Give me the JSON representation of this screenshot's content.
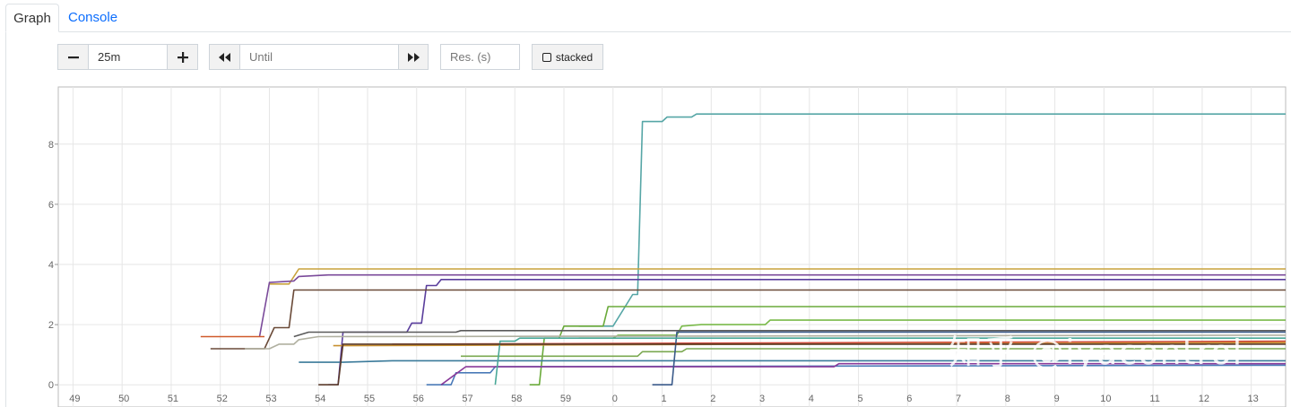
{
  "tabs": [
    {
      "label": "Graph"
    },
    {
      "label": "Console"
    }
  ],
  "controls": {
    "range_minus": "−",
    "range_value": "25m",
    "range_plus": "+",
    "back_icon": "double-chevron-left-icon",
    "until_placeholder": "Until",
    "forward_icon": "double-chevron-right-icon",
    "resolution_placeholder": "Res. (s)",
    "stacked_label": "stacked",
    "stacked_checked": false
  },
  "watermark": "知乎 @iyacontrol",
  "chart_data": {
    "type": "line",
    "x_ticks": [
      "49",
      "50",
      "51",
      "52",
      "53",
      "54",
      "55",
      "56",
      "57",
      "58",
      "59",
      "0",
      "1",
      "2",
      "3",
      "4",
      "5",
      "6",
      "7",
      "8",
      "9",
      "10",
      "11",
      "12",
      "13"
    ],
    "y_ticks": [
      0,
      2,
      4,
      6,
      8
    ],
    "xlim": [
      48.7,
      73.7
    ],
    "ylim": [
      -0.5,
      9.9
    ],
    "grid": true,
    "series": [
      {
        "color": "#56a6a6",
        "points": [
          [
            59.3,
            1.95
          ],
          [
            60,
            1.95
          ],
          [
            60.4,
            3.0
          ],
          [
            60.5,
            3.0
          ],
          [
            60.6,
            8.75
          ],
          [
            61,
            8.75
          ],
          [
            61.1,
            8.9
          ],
          [
            61.6,
            8.9
          ],
          [
            61.7,
            9.0
          ],
          [
            73.7,
            9.0
          ]
        ]
      },
      {
        "color": "#c8a23c",
        "points": [
          [
            53,
            3.35
          ],
          [
            53.4,
            3.35
          ],
          [
            53.6,
            3.85
          ],
          [
            73.7,
            3.85
          ]
        ]
      },
      {
        "color": "#7a4a9a",
        "points": [
          [
            52.8,
            1.6
          ],
          [
            53.0,
            3.4
          ],
          [
            53.5,
            3.45
          ],
          [
            53.6,
            3.6
          ],
          [
            54.2,
            3.65
          ],
          [
            73.7,
            3.65
          ]
        ]
      },
      {
        "color": "#5a3e9c",
        "points": [
          [
            54.2,
            0.0
          ],
          [
            54.4,
            0.0
          ],
          [
            54.5,
            1.75
          ],
          [
            55.8,
            1.75
          ],
          [
            55.9,
            2.05
          ],
          [
            56.1,
            2.05
          ],
          [
            56.2,
            3.3
          ],
          [
            56.4,
            3.3
          ],
          [
            56.5,
            3.5
          ],
          [
            73.7,
            3.5
          ]
        ]
      },
      {
        "color": "#6a4a38",
        "points": [
          [
            51.8,
            1.2
          ],
          [
            52.9,
            1.2
          ],
          [
            53.1,
            1.9
          ],
          [
            53.4,
            1.9
          ],
          [
            53.5,
            3.15
          ],
          [
            73.7,
            3.15
          ]
        ]
      },
      {
        "color": "#6aaa3a",
        "points": [
          [
            58.3,
            0.0
          ],
          [
            58.5,
            0.0
          ],
          [
            58.6,
            1.55
          ],
          [
            58.9,
            1.55
          ],
          [
            59.0,
            1.95
          ],
          [
            59.8,
            1.95
          ],
          [
            59.9,
            2.6
          ],
          [
            73.7,
            2.6
          ]
        ]
      },
      {
        "color": "#7aba4a",
        "points": [
          [
            59.3,
            1.55
          ],
          [
            60.0,
            1.55
          ],
          [
            60.1,
            1.65
          ],
          [
            61.3,
            1.65
          ],
          [
            61.4,
            1.95
          ],
          [
            61.8,
            2.0
          ],
          [
            63.1,
            2.0
          ],
          [
            63.2,
            2.15
          ],
          [
            73.7,
            2.15
          ]
        ]
      },
      {
        "color": "#5a5a5a",
        "points": [
          [
            53.5,
            1.6
          ],
          [
            53.8,
            1.75
          ],
          [
            56.8,
            1.75
          ],
          [
            56.9,
            1.8
          ],
          [
            73.7,
            1.8
          ]
        ]
      },
      {
        "color": "#b0b0a0",
        "points": [
          [
            52.5,
            1.2
          ],
          [
            53.0,
            1.2
          ],
          [
            53.2,
            1.35
          ],
          [
            53.5,
            1.35
          ],
          [
            53.6,
            1.5
          ],
          [
            54.0,
            1.6
          ],
          [
            73.7,
            1.65
          ]
        ]
      },
      {
        "color": "#7aa850",
        "points": [
          [
            56.9,
            0.95
          ],
          [
            60.5,
            0.95
          ],
          [
            60.6,
            1.1
          ],
          [
            61.4,
            1.1
          ],
          [
            61.5,
            1.2
          ],
          [
            73.7,
            1.2
          ]
        ]
      },
      {
        "color": "#d04a3a",
        "points": [
          [
            55.5,
            1.35
          ],
          [
            73.7,
            1.45
          ]
        ]
      },
      {
        "color": "#c89030",
        "points": [
          [
            54.3,
            1.3
          ],
          [
            73.7,
            1.4
          ]
        ]
      },
      {
        "color": "#3a7a9a",
        "points": [
          [
            53.6,
            0.75
          ],
          [
            54.5,
            0.75
          ],
          [
            55.5,
            0.8
          ],
          [
            73.7,
            0.8
          ]
        ]
      },
      {
        "color": "#4a7ab8",
        "points": [
          [
            56.2,
            0.0
          ],
          [
            56.7,
            0.0
          ],
          [
            56.8,
            0.4
          ],
          [
            57.5,
            0.4
          ],
          [
            57.6,
            0.6
          ],
          [
            73.7,
            0.65
          ]
        ]
      },
      {
        "color": "#8a3a9a",
        "points": [
          [
            56.5,
            0.0
          ],
          [
            57.0,
            0.6
          ],
          [
            64.5,
            0.6
          ],
          [
            64.6,
            0.7
          ],
          [
            73.7,
            0.7
          ]
        ]
      },
      {
        "color": "#3a5a8a",
        "points": [
          [
            60.8,
            0.0
          ],
          [
            61.2,
            0.0
          ],
          [
            61.3,
            1.75
          ],
          [
            73.7,
            1.75
          ]
        ]
      },
      {
        "color": "#4aa898",
        "points": [
          [
            57.6,
            0.0
          ],
          [
            57.7,
            1.45
          ],
          [
            58.0,
            1.45
          ],
          [
            58.1,
            1.55
          ],
          [
            73.7,
            1.55
          ]
        ]
      },
      {
        "color": "#5a3a2a",
        "points": [
          [
            54.0,
            0.0
          ],
          [
            54.4,
            0.0
          ],
          [
            54.5,
            1.35
          ],
          [
            55.5,
            1.35
          ],
          [
            73.7,
            1.35
          ]
        ]
      },
      {
        "color": "#d05a2a",
        "points": [
          [
            51.6,
            1.6
          ],
          [
            52.9,
            1.6
          ]
        ]
      }
    ]
  }
}
